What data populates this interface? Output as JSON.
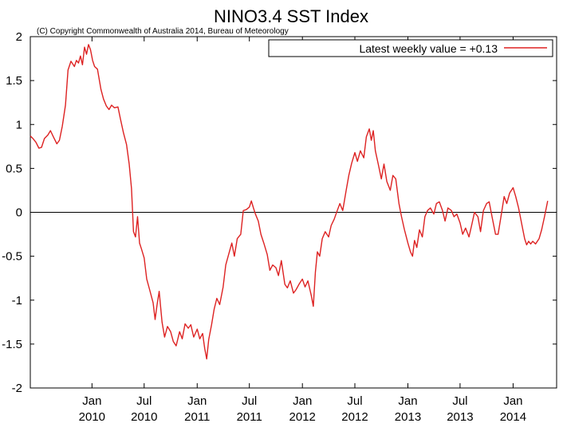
{
  "chart_data": {
    "type": "line",
    "title": "NINO3.4 SST Index",
    "subtitle": "(C) Copyright Commonwealth of Australia 2014, Bureau of Meteorology",
    "xlabel": "",
    "ylabel": "",
    "ylim": [
      -2,
      2
    ],
    "xlim": [
      "2009-06-01",
      "2014-06-01"
    ],
    "grid": false,
    "zero_line": true,
    "legend_position": "top-right",
    "y_ticks": [
      {
        "value": 2,
        "label": "2"
      },
      {
        "value": 1.5,
        "label": "1.5"
      },
      {
        "value": 1,
        "label": "1"
      },
      {
        "value": 0.5,
        "label": "0.5"
      },
      {
        "value": 0,
        "label": "0"
      },
      {
        "value": -0.5,
        "label": "-0.5"
      },
      {
        "value": -1,
        "label": "-1"
      },
      {
        "value": -1.5,
        "label": "-1.5"
      },
      {
        "value": -2,
        "label": "-2"
      }
    ],
    "x_ticks": [
      {
        "value": "2010-01-01",
        "line1": "Jan",
        "line2": "2010"
      },
      {
        "value": "2010-07-01",
        "line1": "Jul",
        "line2": "2010"
      },
      {
        "value": "2011-01-01",
        "line1": "Jan",
        "line2": "2011"
      },
      {
        "value": "2011-07-01",
        "line1": "Jul",
        "line2": "2011"
      },
      {
        "value": "2012-01-01",
        "line1": "Jan",
        "line2": "2012"
      },
      {
        "value": "2012-07-01",
        "line1": "Jul",
        "line2": "2012"
      },
      {
        "value": "2013-01-01",
        "line1": "Jan",
        "line2": "2013"
      },
      {
        "value": "2013-07-01",
        "line1": "Jul",
        "line2": "2013"
      },
      {
        "value": "2014-01-01",
        "line1": "Jan",
        "line2": "2014"
      }
    ],
    "series": [
      {
        "name": "Latest weekly value = +0.13",
        "color": "#dd2222",
        "points": [
          [
            "2009-06-01",
            0.87
          ],
          [
            "2009-06-10",
            0.84
          ],
          [
            "2009-06-20",
            0.8
          ],
          [
            "2009-07-01",
            0.73
          ],
          [
            "2009-07-10",
            0.74
          ],
          [
            "2009-07-20",
            0.84
          ],
          [
            "2009-08-01",
            0.88
          ],
          [
            "2009-08-10",
            0.93
          ],
          [
            "2009-08-20",
            0.86
          ],
          [
            "2009-09-01",
            0.78
          ],
          [
            "2009-09-10",
            0.82
          ],
          [
            "2009-09-20",
            0.98
          ],
          [
            "2009-10-01",
            1.22
          ],
          [
            "2009-10-10",
            1.62
          ],
          [
            "2009-10-20",
            1.72
          ],
          [
            "2009-11-01",
            1.66
          ],
          [
            "2009-11-08",
            1.73
          ],
          [
            "2009-11-15",
            1.7
          ],
          [
            "2009-11-22",
            1.78
          ],
          [
            "2009-11-29",
            1.68
          ],
          [
            "2009-12-06",
            1.88
          ],
          [
            "2009-12-13",
            1.8
          ],
          [
            "2009-12-20",
            1.91
          ],
          [
            "2009-12-27",
            1.85
          ],
          [
            "2010-01-03",
            1.73
          ],
          [
            "2010-01-10",
            1.66
          ],
          [
            "2010-01-20",
            1.63
          ],
          [
            "2010-02-01",
            1.4
          ],
          [
            "2010-02-10",
            1.29
          ],
          [
            "2010-02-20",
            1.21
          ],
          [
            "2010-03-01",
            1.17
          ],
          [
            "2010-03-10",
            1.22
          ],
          [
            "2010-03-20",
            1.19
          ],
          [
            "2010-04-01",
            1.2
          ],
          [
            "2010-04-10",
            1.06
          ],
          [
            "2010-04-20",
            0.91
          ],
          [
            "2010-05-01",
            0.77
          ],
          [
            "2010-05-10",
            0.55
          ],
          [
            "2010-05-18",
            0.27
          ],
          [
            "2010-05-25",
            -0.22
          ],
          [
            "2010-06-01",
            -0.28
          ],
          [
            "2010-06-08",
            -0.05
          ],
          [
            "2010-06-15",
            -0.35
          ],
          [
            "2010-06-22",
            -0.42
          ],
          [
            "2010-07-01",
            -0.52
          ],
          [
            "2010-07-10",
            -0.76
          ],
          [
            "2010-07-20",
            -0.88
          ],
          [
            "2010-08-01",
            -1.03
          ],
          [
            "2010-08-08",
            -1.22
          ],
          [
            "2010-08-15",
            -1.05
          ],
          [
            "2010-08-22",
            -0.9
          ],
          [
            "2010-09-01",
            -1.25
          ],
          [
            "2010-09-10",
            -1.42
          ],
          [
            "2010-09-20",
            -1.3
          ],
          [
            "2010-10-01",
            -1.36
          ],
          [
            "2010-10-10",
            -1.47
          ],
          [
            "2010-10-20",
            -1.52
          ],
          [
            "2010-11-01",
            -1.36
          ],
          [
            "2010-11-10",
            -1.44
          ],
          [
            "2010-11-20",
            -1.27
          ],
          [
            "2010-12-01",
            -1.32
          ],
          [
            "2010-12-10",
            -1.28
          ],
          [
            "2010-12-20",
            -1.42
          ],
          [
            "2011-01-01",
            -1.33
          ],
          [
            "2011-01-10",
            -1.44
          ],
          [
            "2011-01-20",
            -1.38
          ],
          [
            "2011-01-27",
            -1.55
          ],
          [
            "2011-02-03",
            -1.67
          ],
          [
            "2011-02-10",
            -1.45
          ],
          [
            "2011-02-20",
            -1.28
          ],
          [
            "2011-03-01",
            -1.1
          ],
          [
            "2011-03-10",
            -0.98
          ],
          [
            "2011-03-20",
            -1.05
          ],
          [
            "2011-04-01",
            -0.85
          ],
          [
            "2011-04-10",
            -0.6
          ],
          [
            "2011-04-20",
            -0.48
          ],
          [
            "2011-05-01",
            -0.35
          ],
          [
            "2011-05-10",
            -0.5
          ],
          [
            "2011-05-20",
            -0.3
          ],
          [
            "2011-06-01",
            -0.25
          ],
          [
            "2011-06-10",
            0.02
          ],
          [
            "2011-06-20",
            0.03
          ],
          [
            "2011-07-01",
            0.06
          ],
          [
            "2011-07-08",
            0.13
          ],
          [
            "2011-07-15",
            0.05
          ],
          [
            "2011-07-22",
            -0.02
          ],
          [
            "2011-08-01",
            -0.1
          ],
          [
            "2011-08-10",
            -0.25
          ],
          [
            "2011-08-20",
            -0.35
          ],
          [
            "2011-09-01",
            -0.48
          ],
          [
            "2011-09-10",
            -0.66
          ],
          [
            "2011-09-20",
            -0.6
          ],
          [
            "2011-10-01",
            -0.63
          ],
          [
            "2011-10-10",
            -0.72
          ],
          [
            "2011-10-20",
            -0.55
          ],
          [
            "2011-11-01",
            -0.82
          ],
          [
            "2011-11-10",
            -0.86
          ],
          [
            "2011-11-20",
            -0.78
          ],
          [
            "2011-12-01",
            -0.92
          ],
          [
            "2011-12-10",
            -0.88
          ],
          [
            "2011-12-20",
            -0.82
          ],
          [
            "2012-01-01",
            -0.76
          ],
          [
            "2012-01-10",
            -0.85
          ],
          [
            "2012-01-20",
            -0.78
          ],
          [
            "2012-02-01",
            -0.95
          ],
          [
            "2012-02-08",
            -1.07
          ],
          [
            "2012-02-15",
            -0.68
          ],
          [
            "2012-02-22",
            -0.45
          ],
          [
            "2012-03-01",
            -0.5
          ],
          [
            "2012-03-10",
            -0.3
          ],
          [
            "2012-03-20",
            -0.22
          ],
          [
            "2012-04-01",
            -0.28
          ],
          [
            "2012-04-10",
            -0.15
          ],
          [
            "2012-04-20",
            -0.08
          ],
          [
            "2012-05-01",
            0.02
          ],
          [
            "2012-05-10",
            0.1
          ],
          [
            "2012-05-20",
            0.02
          ],
          [
            "2012-06-01",
            0.25
          ],
          [
            "2012-06-10",
            0.42
          ],
          [
            "2012-06-20",
            0.56
          ],
          [
            "2012-07-01",
            0.68
          ],
          [
            "2012-07-10",
            0.58
          ],
          [
            "2012-07-20",
            0.7
          ],
          [
            "2012-08-01",
            0.62
          ],
          [
            "2012-08-10",
            0.86
          ],
          [
            "2012-08-20",
            0.95
          ],
          [
            "2012-08-27",
            0.82
          ],
          [
            "2012-09-03",
            0.93
          ],
          [
            "2012-09-10",
            0.7
          ],
          [
            "2012-09-20",
            0.55
          ],
          [
            "2012-10-01",
            0.38
          ],
          [
            "2012-10-10",
            0.55
          ],
          [
            "2012-10-20",
            0.35
          ],
          [
            "2012-11-01",
            0.25
          ],
          [
            "2012-11-10",
            0.42
          ],
          [
            "2012-11-20",
            0.38
          ],
          [
            "2012-12-01",
            0.1
          ],
          [
            "2012-12-10",
            -0.05
          ],
          [
            "2012-12-20",
            -0.2
          ],
          [
            "2013-01-01",
            -0.35
          ],
          [
            "2013-01-10",
            -0.45
          ],
          [
            "2013-01-17",
            -0.5
          ],
          [
            "2013-01-24",
            -0.32
          ],
          [
            "2013-02-01",
            -0.4
          ],
          [
            "2013-02-10",
            -0.2
          ],
          [
            "2013-02-20",
            -0.28
          ],
          [
            "2013-03-01",
            -0.05
          ],
          [
            "2013-03-10",
            0.02
          ],
          [
            "2013-03-20",
            0.05
          ],
          [
            "2013-04-01",
            -0.02
          ],
          [
            "2013-04-10",
            0.1
          ],
          [
            "2013-04-20",
            0.12
          ],
          [
            "2013-05-01",
            0.02
          ],
          [
            "2013-05-10",
            -0.1
          ],
          [
            "2013-05-20",
            0.05
          ],
          [
            "2013-06-01",
            0.02
          ],
          [
            "2013-06-10",
            -0.05
          ],
          [
            "2013-06-20",
            -0.02
          ],
          [
            "2013-07-01",
            -0.12
          ],
          [
            "2013-07-10",
            -0.25
          ],
          [
            "2013-07-20",
            -0.18
          ],
          [
            "2013-08-01",
            -0.28
          ],
          [
            "2013-08-10",
            -0.15
          ],
          [
            "2013-08-20",
            0.0
          ],
          [
            "2013-09-01",
            -0.05
          ],
          [
            "2013-09-10",
            -0.22
          ],
          [
            "2013-09-20",
            0.02
          ],
          [
            "2013-10-01",
            0.1
          ],
          [
            "2013-10-10",
            0.12
          ],
          [
            "2013-10-20",
            -0.05
          ],
          [
            "2013-11-01",
            -0.25
          ],
          [
            "2013-11-10",
            -0.25
          ],
          [
            "2013-11-20",
            -0.05
          ],
          [
            "2013-12-01",
            0.18
          ],
          [
            "2013-12-10",
            0.1
          ],
          [
            "2013-12-20",
            0.22
          ],
          [
            "2014-01-01",
            0.28
          ],
          [
            "2014-01-10",
            0.18
          ],
          [
            "2014-01-20",
            0.05
          ],
          [
            "2014-02-01",
            -0.15
          ],
          [
            "2014-02-10",
            -0.3
          ],
          [
            "2014-02-17",
            -0.37
          ],
          [
            "2014-02-24",
            -0.33
          ],
          [
            "2014-03-03",
            -0.36
          ],
          [
            "2014-03-10",
            -0.33
          ],
          [
            "2014-03-20",
            -0.36
          ],
          [
            "2014-04-01",
            -0.3
          ],
          [
            "2014-04-10",
            -0.2
          ],
          [
            "2014-04-20",
            -0.05
          ],
          [
            "2014-05-01",
            0.13
          ]
        ]
      }
    ]
  }
}
